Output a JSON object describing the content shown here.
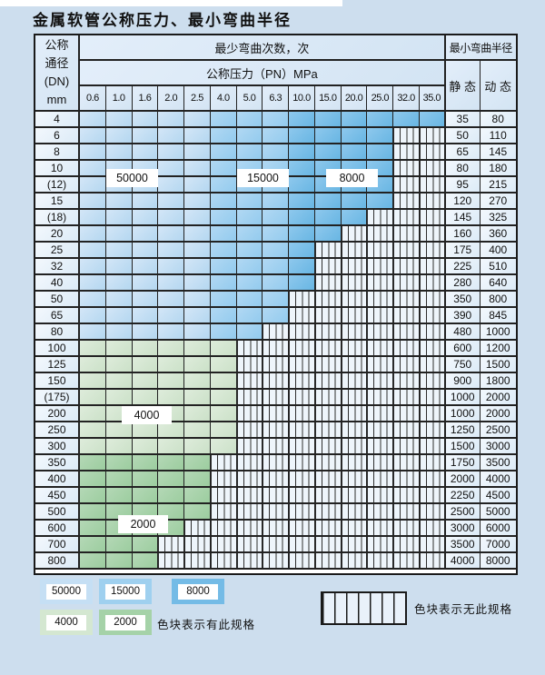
{
  "title": "金属软管公称压力、最小弯曲半径",
  "table": {
    "header": {
      "dn_lines": [
        "公称",
        "通径",
        "(DN)",
        "mm"
      ],
      "bend_times_label": "最少弯曲次数，次",
      "pressure_label": "公称压力（PN）MPa",
      "radius_label": "最小弯曲半径",
      "static_label": "静 态",
      "dynamic_label": "动 态",
      "pressures": [
        "0.6",
        "1.0",
        "1.6",
        "2.0",
        "2.5",
        "4.0",
        "5.0",
        "6.3",
        "10.0",
        "15.0",
        "20.0",
        "25.0",
        "32.0",
        "35.0"
      ]
    },
    "rows": [
      {
        "dn": "4",
        "static": "35",
        "dynamic": "80",
        "colored": 14,
        "scheme": "blue"
      },
      {
        "dn": "6",
        "static": "50",
        "dynamic": "110",
        "colored": 12,
        "scheme": "blue"
      },
      {
        "dn": "8",
        "static": "65",
        "dynamic": "145",
        "colored": 12,
        "scheme": "blue"
      },
      {
        "dn": "10",
        "static": "80",
        "dynamic": "180",
        "colored": 12,
        "scheme": "blue"
      },
      {
        "dn": "(12)",
        "static": "95",
        "dynamic": "215",
        "colored": 12,
        "scheme": "blue"
      },
      {
        "dn": "15",
        "static": "120",
        "dynamic": "270",
        "colored": 12,
        "scheme": "blue"
      },
      {
        "dn": "(18)",
        "static": "145",
        "dynamic": "325",
        "colored": 11,
        "scheme": "blue"
      },
      {
        "dn": "20",
        "static": "160",
        "dynamic": "360",
        "colored": 10,
        "scheme": "blue"
      },
      {
        "dn": "25",
        "static": "175",
        "dynamic": "400",
        "colored": 9,
        "scheme": "blue"
      },
      {
        "dn": "32",
        "static": "225",
        "dynamic": "510",
        "colored": 9,
        "scheme": "blue"
      },
      {
        "dn": "40",
        "static": "280",
        "dynamic": "640",
        "colored": 9,
        "scheme": "blue"
      },
      {
        "dn": "50",
        "static": "350",
        "dynamic": "800",
        "colored": 8,
        "scheme": "blue"
      },
      {
        "dn": "65",
        "static": "390",
        "dynamic": "845",
        "colored": 8,
        "scheme": "blue"
      },
      {
        "dn": "80",
        "static": "480",
        "dynamic": "1000",
        "colored": 7,
        "scheme": "blue"
      },
      {
        "dn": "100",
        "static": "600",
        "dynamic": "1200",
        "colored": 6,
        "scheme": "green4000"
      },
      {
        "dn": "125",
        "static": "750",
        "dynamic": "1500",
        "colored": 6,
        "scheme": "green4000"
      },
      {
        "dn": "150",
        "static": "900",
        "dynamic": "1800",
        "colored": 6,
        "scheme": "green4000"
      },
      {
        "dn": "(175)",
        "static": "1000",
        "dynamic": "2000",
        "colored": 6,
        "scheme": "green4000"
      },
      {
        "dn": "200",
        "static": "1000",
        "dynamic": "2000",
        "colored": 6,
        "scheme": "green4000"
      },
      {
        "dn": "250",
        "static": "1250",
        "dynamic": "2500",
        "colored": 6,
        "scheme": "green4000"
      },
      {
        "dn": "300",
        "static": "1500",
        "dynamic": "3000",
        "colored": 6,
        "scheme": "green4000"
      },
      {
        "dn": "350",
        "static": "1750",
        "dynamic": "3500",
        "colored": 5,
        "scheme": "green2000"
      },
      {
        "dn": "400",
        "static": "2000",
        "dynamic": "4000",
        "colored": 5,
        "scheme": "green2000"
      },
      {
        "dn": "450",
        "static": "2250",
        "dynamic": "4500",
        "colored": 5,
        "scheme": "green2000"
      },
      {
        "dn": "500",
        "static": "2500",
        "dynamic": "5000",
        "colored": 5,
        "scheme": "green2000"
      },
      {
        "dn": "600",
        "static": "3000",
        "dynamic": "6000",
        "colored": 4,
        "scheme": "green2000"
      },
      {
        "dn": "700",
        "static": "3500",
        "dynamic": "7000",
        "colored": 3,
        "scheme": "green2000"
      },
      {
        "dn": "800",
        "static": "4000",
        "dynamic": "8000",
        "colored": 3,
        "scheme": "green2000"
      }
    ],
    "region_labels": {
      "r50000": "50000",
      "r15000": "15000",
      "r8000": "8000",
      "r4000": "4000",
      "r2000": "2000"
    }
  },
  "legend": {
    "items": [
      {
        "label": "50000",
        "scheme": "b1"
      },
      {
        "label": "15000",
        "scheme": "b2"
      },
      {
        "label": "8000",
        "scheme": "b3"
      },
      {
        "label": "4000",
        "scheme": "g1"
      },
      {
        "label": "2000",
        "scheme": "g2"
      }
    ],
    "present_text": "色块表示有此规格",
    "absent_text": "色块表示无此规格"
  },
  "colors": {
    "page_bg": "#cddeee",
    "header_bg": "#d9e7f4",
    "blue_50000": "#c2ddf2",
    "blue_15000": "#9dcfef",
    "blue_8000": "#77bce6",
    "green_4000": "#d4e7d1",
    "green_2000": "#a5d2a8",
    "hatch_bg": "#eef5fb",
    "grid_line": "#222222"
  }
}
